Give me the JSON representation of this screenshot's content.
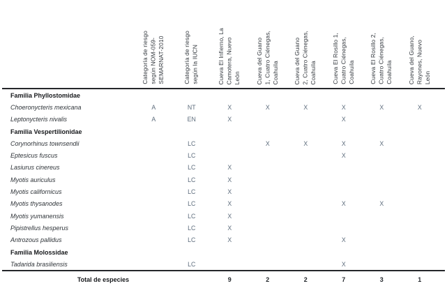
{
  "table": {
    "columns": [
      "Categoría de riesgo\nsegún NOM-059-\nSEMARNAT-2010",
      "Categoría de riesgo\nsegún la IUCN",
      "Cueva El Infierno, La\nCamotera, Nuevo\nLeón",
      "Cueva del Guano\n1, Cuatro Ciénegas,\nCoahuila",
      "Cueva del Guano\n2, Cuatro Ciénegas,\nCoahuila",
      "Cueva El Rosillo 1,\nCuatro Ciénegas,\nCoahuila",
      "Cueva El Rosillo 2,\nCuatro Ciénegas,\nCoahuila",
      "Cueva del Guano,\nRayones, Nuevo\nLeón"
    ],
    "rows": [
      {
        "type": "family",
        "name": "Familia Phyllostomidae",
        "values": [
          "",
          "",
          "",
          "",
          "",
          "",
          "",
          ""
        ]
      },
      {
        "type": "species",
        "name": "Choeronycteris mexicana",
        "values": [
          "A",
          "NT",
          "X",
          "X",
          "X",
          "X",
          "X",
          "X"
        ]
      },
      {
        "type": "species",
        "name": "Leptonycteris nivalis",
        "values": [
          "A",
          "EN",
          "X",
          "",
          "",
          "X",
          "",
          ""
        ]
      },
      {
        "type": "family",
        "name": "Familia Vespertilionidae",
        "values": [
          "",
          "",
          "",
          "",
          "",
          "",
          "",
          ""
        ]
      },
      {
        "type": "species",
        "name": "Corynorhinus townsendii",
        "values": [
          "",
          "LC",
          "",
          "X",
          "X",
          "X",
          "X",
          ""
        ]
      },
      {
        "type": "species",
        "name": "Eptesicus fuscus",
        "values": [
          "",
          "LC",
          "",
          "",
          "",
          "X",
          "",
          ""
        ]
      },
      {
        "type": "species",
        "name": "Lasiurus cinereus",
        "values": [
          "",
          "LC",
          "X",
          "",
          "",
          "",
          "",
          ""
        ]
      },
      {
        "type": "species",
        "name": "Myotis auriculus",
        "values": [
          "",
          "LC",
          "X",
          "",
          "",
          "",
          "",
          ""
        ]
      },
      {
        "type": "species",
        "name": "Myotis californicus",
        "values": [
          "",
          "LC",
          "X",
          "",
          "",
          "",
          "",
          ""
        ]
      },
      {
        "type": "species",
        "name": "Myotis thysanodes",
        "values": [
          "",
          "LC",
          "X",
          "",
          "",
          "X",
          "X",
          ""
        ]
      },
      {
        "type": "species",
        "name": "Myotis yumanensis",
        "values": [
          "",
          "LC",
          "X",
          "",
          "",
          "",
          "",
          ""
        ]
      },
      {
        "type": "species",
        "name": "Pipistrellus hesperus",
        "values": [
          "",
          "LC",
          "X",
          "",
          "",
          "",
          "",
          ""
        ]
      },
      {
        "type": "species",
        "name": "Antrozous pallidus",
        "values": [
          "",
          "LC",
          "X",
          "",
          "",
          "X",
          "",
          ""
        ]
      },
      {
        "type": "family",
        "name": "Familia Molossidae",
        "values": [
          "",
          "",
          "",
          "",
          "",
          "",
          "",
          ""
        ]
      },
      {
        "type": "species",
        "name": "Tadarida brasiliensis",
        "values": [
          "",
          "LC",
          "",
          "",
          "",
          "X",
          "",
          ""
        ]
      }
    ],
    "total": {
      "label": "Total de especies",
      "values": [
        "",
        "",
        "9",
        "2",
        "2",
        "7",
        "3",
        "1"
      ]
    }
  }
}
